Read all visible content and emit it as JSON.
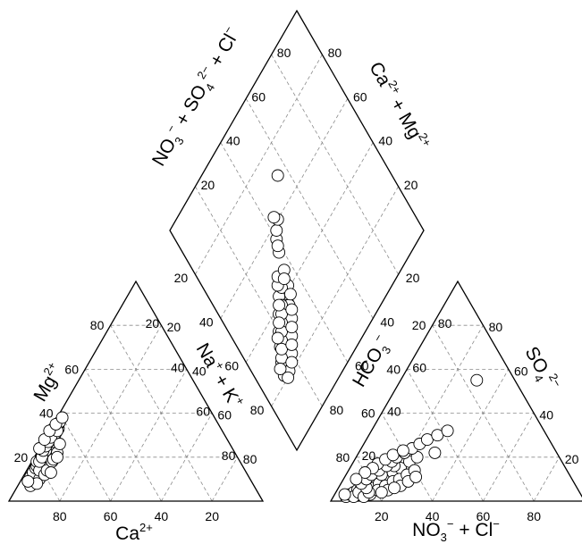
{
  "chart_data": {
    "type": "scatter",
    "subtype": "piper-diagram",
    "grid": true,
    "marker": "open-circle",
    "colors": {
      "frame": "#000000",
      "grid": "#8a8a8a",
      "marker_fill": "#ffffff",
      "marker_stroke": "#000000"
    },
    "cation_triangle": {
      "axes": [
        "Ca2+ (%)",
        "Mg2+ (%)",
        "Na+ + K+ (%)"
      ],
      "label_mg": {
        "main": "Mg",
        "sup": "2+"
      },
      "label_ca": {
        "main": "Ca",
        "sup": "2+"
      },
      "label_nak": {
        "p1": "Na",
        "s1": "+",
        "p2": " + K",
        "s2": "+"
      },
      "ticks_ca": [
        "80",
        "60",
        "40",
        "20"
      ],
      "ticks_mg": [
        "20",
        "40",
        "60",
        "80"
      ],
      "ticks_nak": [
        "20",
        "40",
        "60",
        "80"
      ],
      "ticks_right": [
        "80",
        "60",
        "40",
        "20"
      ],
      "points_mg_percent": [
        [
          86,
          8
        ],
        [
          88,
          7
        ],
        [
          84,
          10
        ],
        [
          85,
          10
        ],
        [
          83,
          12
        ],
        [
          82,
          13
        ],
        [
          80,
          15
        ],
        [
          79,
          16
        ],
        [
          78,
          17
        ],
        [
          77,
          18
        ],
        [
          76,
          19
        ],
        [
          75,
          20
        ],
        [
          74,
          21
        ],
        [
          73,
          23
        ],
        [
          72,
          24
        ],
        [
          71,
          25
        ],
        [
          70,
          26
        ],
        [
          69,
          27
        ],
        [
          68,
          28
        ],
        [
          67,
          30
        ],
        [
          66,
          31
        ],
        [
          64,
          33
        ],
        [
          63,
          35
        ],
        [
          86,
          11
        ],
        [
          84,
          13
        ],
        [
          82,
          15
        ],
        [
          81,
          16
        ],
        [
          80,
          18
        ],
        [
          78,
          19
        ],
        [
          76,
          21
        ],
        [
          74,
          23
        ],
        [
          72,
          26
        ],
        [
          70,
          28
        ],
        [
          68,
          31
        ],
        [
          66,
          33
        ],
        [
          62,
          36
        ],
        [
          83,
          10
        ],
        [
          81,
          14
        ],
        [
          79,
          18
        ],
        [
          77,
          20
        ],
        [
          75,
          23
        ],
        [
          73,
          25
        ],
        [
          71,
          27
        ],
        [
          69,
          29
        ],
        [
          65,
          32
        ],
        [
          85,
          8
        ],
        [
          80,
          12
        ],
        [
          78,
          14
        ],
        [
          74,
          18
        ],
        [
          70,
          22
        ],
        [
          88,
          9
        ],
        [
          76,
          24
        ],
        [
          72,
          28
        ],
        [
          68,
          32
        ],
        [
          64,
          35
        ],
        [
          60,
          38
        ],
        [
          77,
          13
        ],
        [
          73,
          19
        ],
        [
          71,
          20
        ],
        [
          67,
          26
        ]
      ]
    },
    "anion_triangle": {
      "axes": [
        "SO4 2- (%)",
        "Cl- (%)",
        "HCO3- (%)"
      ],
      "label_hco3": {
        "main": "HCO",
        "sub": "3",
        "sup": "−"
      },
      "label_so4": {
        "main": "SO",
        "sub": "4",
        "sup": "2−"
      },
      "label_no3cl": {
        "p1": "NO",
        "sub": "3",
        "s1": "−",
        "p2": " + Cl",
        "s2": "−"
      },
      "ticks_hco3": [
        "80",
        "60",
        "40",
        "20"
      ],
      "ticks_no3cl": [
        "20",
        "40",
        "60",
        "80"
      ],
      "ticks_so4": [
        "80",
        "60",
        "40",
        "20"
      ],
      "ticks_bottom": [
        "20",
        "40",
        "60",
        "80"
      ],
      "points_so4_cl_percent": [
        [
          2,
          5
        ],
        [
          3,
          6
        ],
        [
          4,
          7
        ],
        [
          5,
          8
        ],
        [
          6,
          9
        ],
        [
          3,
          10
        ],
        [
          5,
          11
        ],
        [
          7,
          12
        ],
        [
          2,
          8
        ],
        [
          4,
          9
        ],
        [
          8,
          10
        ],
        [
          9,
          12
        ],
        [
          10,
          13
        ],
        [
          6,
          14
        ],
        [
          8,
          15
        ],
        [
          11,
          16
        ],
        [
          12,
          14
        ],
        [
          13,
          18
        ],
        [
          15,
          20
        ],
        [
          16,
          17
        ],
        [
          18,
          22
        ],
        [
          20,
          24
        ],
        [
          3,
          14
        ],
        [
          5,
          16
        ],
        [
          7,
          18
        ],
        [
          9,
          20
        ],
        [
          10,
          22
        ],
        [
          12,
          24
        ],
        [
          14,
          26
        ],
        [
          2,
          12
        ],
        [
          4,
          13
        ],
        [
          6,
          11
        ],
        [
          8,
          8
        ],
        [
          10,
          9
        ],
        [
          12,
          10
        ],
        [
          14,
          12
        ],
        [
          16,
          14
        ],
        [
          18,
          15
        ],
        [
          20,
          16
        ],
        [
          22,
          18
        ],
        [
          24,
          20
        ],
        [
          26,
          22
        ],
        [
          28,
          24
        ],
        [
          5,
          20
        ],
        [
          7,
          24
        ],
        [
          9,
          26
        ],
        [
          11,
          28
        ],
        [
          17,
          10
        ],
        [
          19,
          12
        ],
        [
          21,
          14
        ],
        [
          23,
          17
        ],
        [
          30,
          27
        ],
        [
          32,
          30
        ],
        [
          22,
          30
        ],
        [
          4,
          18
        ],
        [
          6,
          22
        ],
        [
          15,
          9
        ],
        [
          13,
          7
        ],
        [
          3,
          4
        ],
        [
          10,
          5
        ],
        [
          55,
          30
        ]
      ]
    },
    "diamond": {
      "label_anions": {
        "p1": "NO",
        "sub1": "3",
        "sup1": "−",
        "p2": " + SO",
        "sub2": "4",
        "sup2": "2−",
        "p3": " + Cl",
        "sup3": "−"
      },
      "label_cations": {
        "p1": "Ca",
        "sup1": "2+",
        "p2": " + Mg",
        "sup2": "2+"
      },
      "ticks_upper_left": [
        "80",
        "60",
        "40",
        "20"
      ],
      "ticks_upper_right": [
        "80",
        "60",
        "40",
        "20"
      ],
      "ticks_lower_left": [
        "20",
        "40",
        "60",
        "80"
      ],
      "ticks_lower_right": [
        "20",
        "40",
        "60",
        "80"
      ],
      "points_so4cl_naK_percent": [
        [
          22,
          12
        ],
        [
          24,
          14
        ],
        [
          26,
          16
        ],
        [
          28,
          18
        ],
        [
          30,
          20
        ],
        [
          32,
          22
        ],
        [
          34,
          24
        ],
        [
          36,
          26
        ],
        [
          38,
          28
        ],
        [
          40,
          30
        ],
        [
          42,
          32
        ],
        [
          23,
          16
        ],
        [
          25,
          18
        ],
        [
          27,
          20
        ],
        [
          29,
          22
        ],
        [
          31,
          24
        ],
        [
          33,
          26
        ],
        [
          35,
          28
        ],
        [
          37,
          30
        ],
        [
          39,
          32
        ],
        [
          41,
          34
        ],
        [
          21,
          15
        ],
        [
          26,
          14
        ],
        [
          30,
          17
        ],
        [
          34,
          20
        ],
        [
          38,
          24
        ],
        [
          42,
          28
        ],
        [
          24,
          20
        ],
        [
          28,
          24
        ],
        [
          32,
          28
        ],
        [
          36,
          30
        ],
        [
          27,
          15
        ],
        [
          31,
          19
        ],
        [
          35,
          23
        ],
        [
          39,
          27
        ],
        [
          29,
          17
        ],
        [
          33,
          21
        ],
        [
          37,
          25
        ],
        [
          43,
          31
        ],
        [
          20,
          13
        ],
        [
          45,
          30
        ],
        [
          47,
          32
        ],
        [
          46,
          36
        ],
        [
          44,
          34
        ],
        [
          26,
          22
        ],
        [
          30,
          26
        ],
        [
          34,
          30
        ],
        [
          38,
          33
        ],
        [
          52,
          38
        ],
        [
          56,
          40
        ],
        [
          58,
          42
        ],
        [
          60,
          45
        ],
        [
          62,
          44
        ],
        [
          22,
          18
        ],
        [
          25,
          12
        ],
        [
          33,
          18
        ],
        [
          40,
          26
        ],
        [
          36,
          22
        ],
        [
          54,
          39
        ],
        [
          70,
          55
        ]
      ]
    }
  }
}
